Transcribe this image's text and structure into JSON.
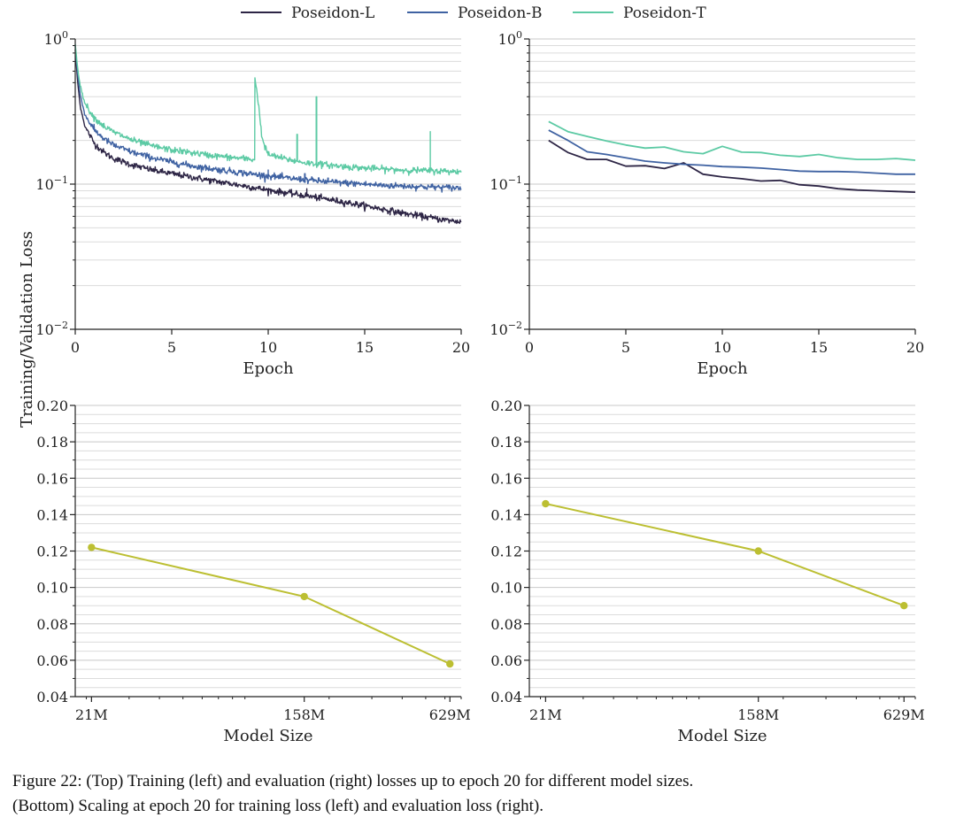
{
  "legend": {
    "entries": [
      {
        "name": "Poseidon-L",
        "color": "#2d2545"
      },
      {
        "name": "Poseidon-B",
        "color": "#3f62a2"
      },
      {
        "name": "Poseidon-T",
        "color": "#5ccaa4"
      }
    ]
  },
  "shared_ylabel": "Training/Validation Loss",
  "chart_data": [
    {
      "id": "train-loss",
      "type": "line",
      "xlabel": "Epoch",
      "xlim": [
        0,
        20
      ],
      "xticks": [
        0,
        5,
        10,
        15,
        20
      ],
      "yscale": "log",
      "ylim": [
        0.01,
        1
      ],
      "ytick_labels": [
        {
          "base": "10",
          "exp": "0"
        },
        {
          "base": "10",
          "exp": "−1"
        },
        {
          "base": "10",
          "exp": "−2"
        }
      ],
      "grid": "horizontal",
      "series": [
        {
          "name": "Poseidon-L",
          "color": "#2d2545",
          "x": [
            0,
            0.1,
            0.25,
            0.5,
            1,
            1.5,
            2,
            3,
            4,
            5,
            6,
            7,
            8,
            9,
            10,
            11,
            12,
            13,
            14,
            15,
            16,
            17,
            18,
            19,
            20
          ],
          "y": [
            0.85,
            0.55,
            0.35,
            0.25,
            0.19,
            0.165,
            0.15,
            0.135,
            0.125,
            0.118,
            0.112,
            0.106,
            0.101,
            0.096,
            0.091,
            0.087,
            0.083,
            0.079,
            0.075,
            0.071,
            0.067,
            0.063,
            0.06,
            0.057,
            0.055
          ]
        },
        {
          "name": "Poseidon-B",
          "color": "#3f62a2",
          "x": [
            0,
            0.1,
            0.25,
            0.5,
            1,
            1.5,
            2,
            3,
            4,
            5,
            6,
            7,
            8,
            9,
            10,
            11,
            12,
            13,
            14,
            15,
            16,
            17,
            18,
            19,
            20
          ],
          "y": [
            0.9,
            0.62,
            0.42,
            0.3,
            0.235,
            0.205,
            0.185,
            0.165,
            0.152,
            0.142,
            0.134,
            0.128,
            0.123,
            0.118,
            0.114,
            0.11,
            0.107,
            0.104,
            0.102,
            0.1,
            0.098,
            0.097,
            0.096,
            0.095,
            0.094
          ]
        },
        {
          "name": "Poseidon-T",
          "color": "#5ccaa4",
          "x": [
            0,
            0.1,
            0.25,
            0.5,
            1,
            1.5,
            2,
            3,
            4,
            5,
            6,
            7,
            8,
            9,
            9.3,
            9.31,
            9.45,
            9.7,
            10,
            11,
            12,
            13,
            14,
            15,
            16,
            17,
            18,
            19,
            20
          ],
          "y": [
            0.92,
            0.68,
            0.48,
            0.36,
            0.285,
            0.25,
            0.228,
            0.2,
            0.183,
            0.172,
            0.165,
            0.158,
            0.153,
            0.149,
            0.147,
            0.54,
            0.4,
            0.2,
            0.16,
            0.148,
            0.14,
            0.136,
            0.132,
            0.129,
            0.127,
            0.125,
            0.124,
            0.123,
            0.122
          ]
        }
      ]
    },
    {
      "id": "eval-loss",
      "type": "line",
      "xlabel": "Epoch",
      "xlim": [
        0,
        20
      ],
      "xticks": [
        0,
        5,
        10,
        15,
        20
      ],
      "yscale": "log",
      "ylim": [
        0.01,
        1
      ],
      "ytick_labels": [
        {
          "base": "10",
          "exp": "0"
        },
        {
          "base": "10",
          "exp": "−1"
        },
        {
          "base": "10",
          "exp": "−2"
        }
      ],
      "grid": "horizontal",
      "series": [
        {
          "name": "Poseidon-L",
          "color": "#2d2545",
          "x": [
            1,
            2,
            3,
            4,
            5,
            6,
            7,
            8,
            9,
            10,
            11,
            12,
            13,
            14,
            15,
            16,
            17,
            18,
            19,
            20
          ],
          "y": [
            0.2,
            0.165,
            0.148,
            0.148,
            0.133,
            0.134,
            0.128,
            0.14,
            0.117,
            0.112,
            0.109,
            0.105,
            0.106,
            0.099,
            0.097,
            0.093,
            0.091,
            0.09,
            0.089,
            0.088
          ]
        },
        {
          "name": "Poseidon-B",
          "color": "#3f62a2",
          "x": [
            1,
            2,
            3,
            4,
            5,
            6,
            7,
            8,
            9,
            10,
            11,
            12,
            13,
            14,
            15,
            16,
            17,
            18,
            19,
            20
          ],
          "y": [
            0.235,
            0.2,
            0.167,
            0.16,
            0.152,
            0.144,
            0.14,
            0.137,
            0.135,
            0.132,
            0.131,
            0.129,
            0.126,
            0.123,
            0.122,
            0.122,
            0.121,
            0.119,
            0.117,
            0.117
          ]
        },
        {
          "name": "Poseidon-T",
          "color": "#5ccaa4",
          "x": [
            1,
            2,
            3,
            4,
            5,
            6,
            7,
            8,
            9,
            10,
            11,
            12,
            13,
            14,
            15,
            16,
            17,
            18,
            19,
            20
          ],
          "y": [
            0.27,
            0.23,
            0.213,
            0.198,
            0.186,
            0.177,
            0.18,
            0.167,
            0.162,
            0.182,
            0.166,
            0.165,
            0.158,
            0.155,
            0.16,
            0.152,
            0.148,
            0.148,
            0.15,
            0.146
          ]
        }
      ]
    },
    {
      "id": "train-scaling",
      "type": "line",
      "xlabel": "Model Size",
      "xscale": "log",
      "categories": [
        "21M",
        "158M",
        "629M"
      ],
      "x": [
        21,
        158,
        629
      ],
      "xlim": [
        18,
        700
      ],
      "y": [
        0.122,
        0.095,
        0.058
      ],
      "ylim": [
        0.04,
        0.2
      ],
      "yticks": [
        "0.04",
        "0.06",
        "0.08",
        "0.10",
        "0.12",
        "0.14",
        "0.16",
        "0.18",
        "0.20"
      ],
      "grid": "horizontal",
      "color": "#bcbf32"
    },
    {
      "id": "eval-scaling",
      "type": "line",
      "xlabel": "Model Size",
      "xscale": "log",
      "categories": [
        "21M",
        "158M",
        "629M"
      ],
      "x": [
        21,
        158,
        629
      ],
      "xlim": [
        18,
        700
      ],
      "y": [
        0.146,
        0.12,
        0.09
      ],
      "ylim": [
        0.04,
        0.2
      ],
      "yticks": [
        "0.04",
        "0.06",
        "0.08",
        "0.10",
        "0.12",
        "0.14",
        "0.16",
        "0.18",
        "0.20"
      ],
      "grid": "horizontal",
      "color": "#bcbf32"
    }
  ],
  "caption": {
    "line1": "Figure 22: (Top) Training (left) and evaluation (right) losses up to epoch 20 for different model sizes.",
    "line2": "(Bottom) Scaling at epoch 20 for training loss (left) and evaluation loss (right)."
  }
}
